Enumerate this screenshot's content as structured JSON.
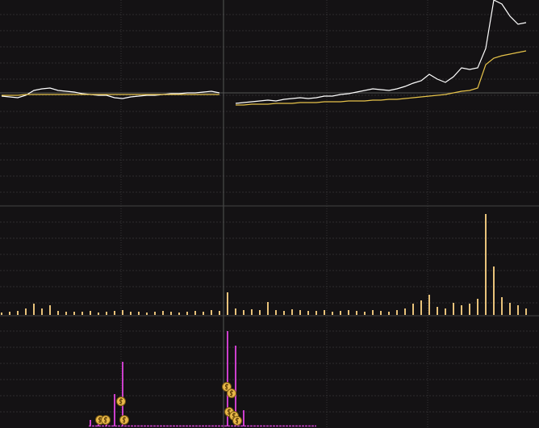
{
  "chart_data": [
    {
      "type": "line",
      "ylim": [
        0,
        255
      ],
      "series": [
        {
          "color": "#ffffff",
          "values": [
            136,
            135,
            134,
            137,
            143,
            145,
            146,
            143,
            142,
            141,
            139,
            138,
            137,
            137,
            134,
            133,
            135,
            136,
            137,
            137,
            138,
            139,
            139,
            140,
            140,
            141,
            142,
            140,
            null,
            127,
            128,
            129,
            130,
            131,
            130,
            132,
            133,
            134,
            133,
            134,
            136,
            136,
            138,
            139,
            141,
            143,
            145,
            144,
            143,
            145,
            148,
            152,
            155,
            163,
            157,
            153,
            160,
            171,
            169,
            171,
            195,
            255,
            250,
            235,
            225,
            227
          ]
        },
        {
          "color": "#e6c34a",
          "values": [
            137,
            137,
            137,
            138,
            138,
            138,
            138,
            138,
            138,
            138,
            138,
            138,
            138,
            138,
            138,
            138,
            138,
            138,
            138,
            138,
            138,
            138,
            138,
            138,
            138,
            138,
            138,
            138,
            null,
            125,
            125,
            126,
            126,
            126,
            127,
            127,
            127,
            128,
            128,
            128,
            129,
            129,
            129,
            130,
            130,
            130,
            131,
            131,
            132,
            132,
            133,
            134,
            135,
            136,
            137,
            138,
            140,
            142,
            143,
            146,
            175,
            183,
            186,
            188,
            190,
            192
          ]
        }
      ]
    },
    {
      "type": "bar",
      "ylim": [
        0,
        130
      ],
      "color": "#e8c27a",
      "values": [
        3,
        4,
        5,
        8,
        14,
        8,
        12,
        5,
        4,
        4,
        4,
        5,
        3,
        4,
        5,
        6,
        4,
        4,
        3,
        4,
        5,
        4,
        3,
        4,
        5,
        4,
        6,
        5,
        28,
        8,
        6,
        7,
        6,
        16,
        6,
        5,
        7,
        6,
        5,
        5,
        6,
        4,
        5,
        6,
        5,
        4,
        6,
        5,
        4,
        6,
        8,
        14,
        18,
        25,
        10,
        8,
        15,
        12,
        14,
        20,
        125,
        60,
        22,
        15,
        12,
        8
      ]
    },
    {
      "type": "bar",
      "ylim": [
        0,
        120
      ],
      "color": "#cc3fcc",
      "values": [
        0,
        0,
        0,
        0,
        0,
        0,
        0,
        0,
        0,
        0,
        0,
        8,
        10,
        12,
        40,
        80,
        0,
        0,
        0,
        0,
        0,
        0,
        0,
        0,
        0,
        0,
        0,
        0,
        118,
        100,
        20,
        0,
        0,
        0,
        0,
        0,
        0,
        0,
        0,
        0,
        0,
        0,
        0,
        0,
        0,
        0,
        0,
        0,
        0,
        0,
        0,
        0,
        0,
        0,
        0,
        0,
        0,
        0,
        0,
        0,
        0,
        0,
        0,
        0,
        0,
        0
      ]
    }
  ]
}
